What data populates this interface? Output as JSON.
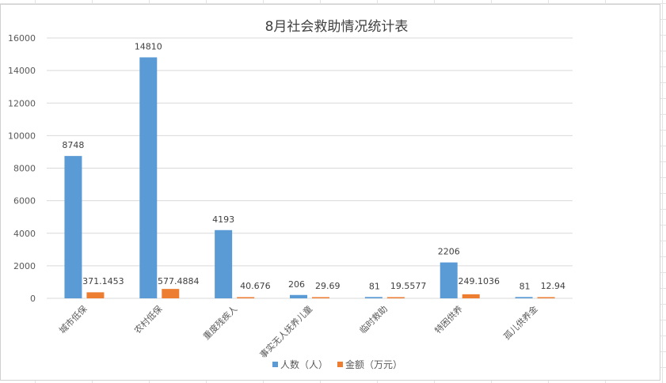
{
  "colors": {
    "series1": "#5b9bd5",
    "series2": "#ed7d31",
    "gridline": "#d9d9d9"
  },
  "chart_data": {
    "type": "bar",
    "title": "8月社会救助情况统计表",
    "categories": [
      "城市低保",
      "农村低保",
      "重度残疾人",
      "事实无人抚养儿童",
      "临时救助",
      "特困供养",
      "孤儿供养金"
    ],
    "series": [
      {
        "name": "人数（人）",
        "values": [
          8748,
          14810,
          4193,
          206,
          81,
          2206,
          81
        ],
        "labels": [
          "8748",
          "14810",
          "4193",
          "206",
          "81",
          "2206",
          "81"
        ]
      },
      {
        "name": "金额（万元）",
        "values": [
          371.1453,
          577.4884,
          40.676,
          29.69,
          19.5577,
          249.1036,
          12.94
        ],
        "labels": [
          "371.1453",
          "577.4884",
          "40.676",
          "29.69",
          "19.5577",
          "249.1036",
          "12.94"
        ]
      }
    ],
    "ylim": [
      0,
      16000
    ],
    "yticks": [
      "0",
      "2000",
      "4000",
      "6000",
      "8000",
      "10000",
      "12000",
      "14000",
      "16000"
    ],
    "grid": true,
    "legend_position": "bottom"
  }
}
